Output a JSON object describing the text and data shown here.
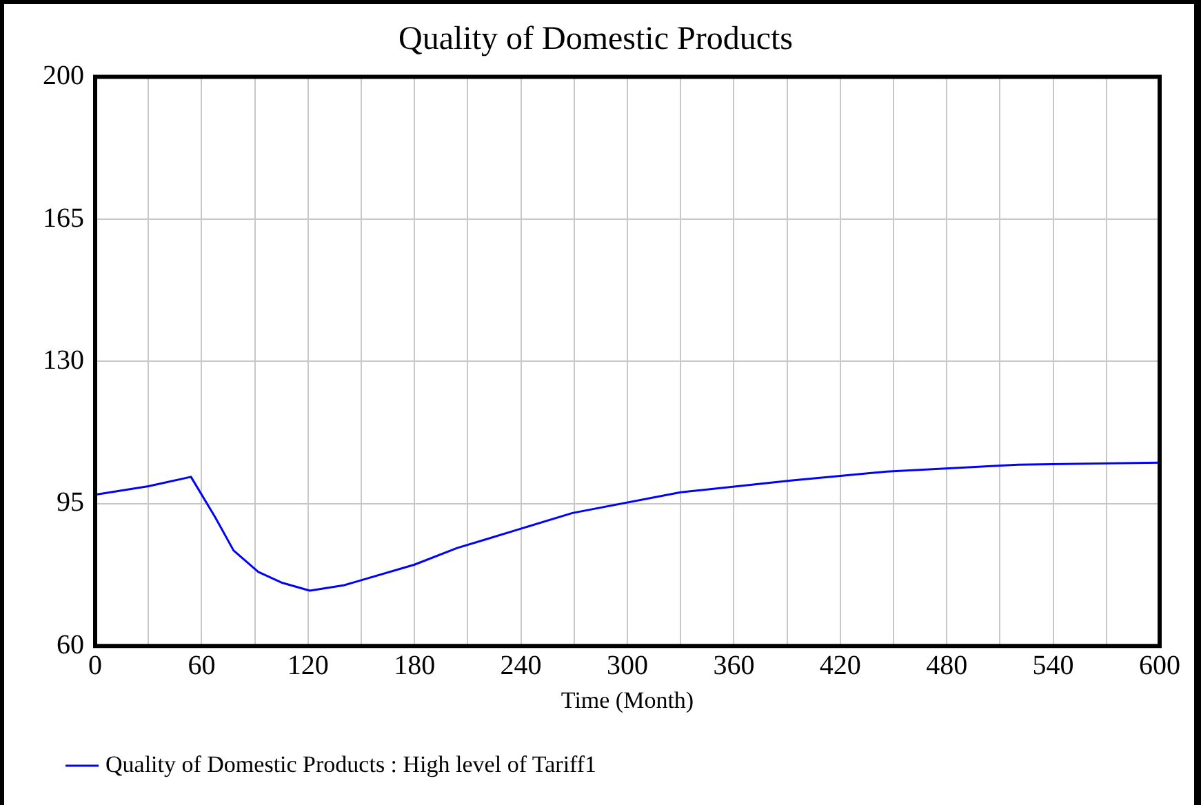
{
  "chart_data": {
    "type": "line",
    "title": "Quality of Domestic Products",
    "xlabel": "Time (Month)",
    "xlim": [
      0,
      600
    ],
    "ylim": [
      60,
      200
    ],
    "xticks": [
      0,
      {
        "value": 30,
        "label": null
      },
      60,
      {
        "value": 90,
        "label": null
      },
      120,
      {
        "value": 150,
        "label": null
      },
      180,
      {
        "value": 210,
        "label": null
      },
      240,
      {
        "value": 270,
        "label": null
      },
      300,
      {
        "value": 330,
        "label": null
      },
      360,
      {
        "value": 390,
        "label": null
      },
      420,
      {
        "value": 450,
        "label": null
      },
      480,
      {
        "value": 510,
        "label": null
      },
      540,
      {
        "value": 570,
        "label": null
      },
      600
    ],
    "yticks": [
      60,
      95,
      130,
      165,
      200
    ],
    "grid": true,
    "legend": "bottom",
    "marker": "none",
    "line_style": "solid",
    "series": [
      {
        "name": "Quality of Domestic Products : High level of Tariff1",
        "color": "#0000ff",
        "x": [
          0,
          30,
          54,
          67.5,
          78,
          92,
          105,
          121,
          140,
          180,
          204,
          220,
          269,
          330,
          392,
          446,
          520,
          600
        ],
        "values": [
          97.2,
          99.3,
          101.6,
          91.8,
          83.5,
          78.2,
          75.6,
          73.6,
          74.9,
          80,
          84.1,
          86.2,
          92.7,
          97.8,
          100.7,
          102.9,
          104.6,
          105.1
        ]
      }
    ]
  }
}
